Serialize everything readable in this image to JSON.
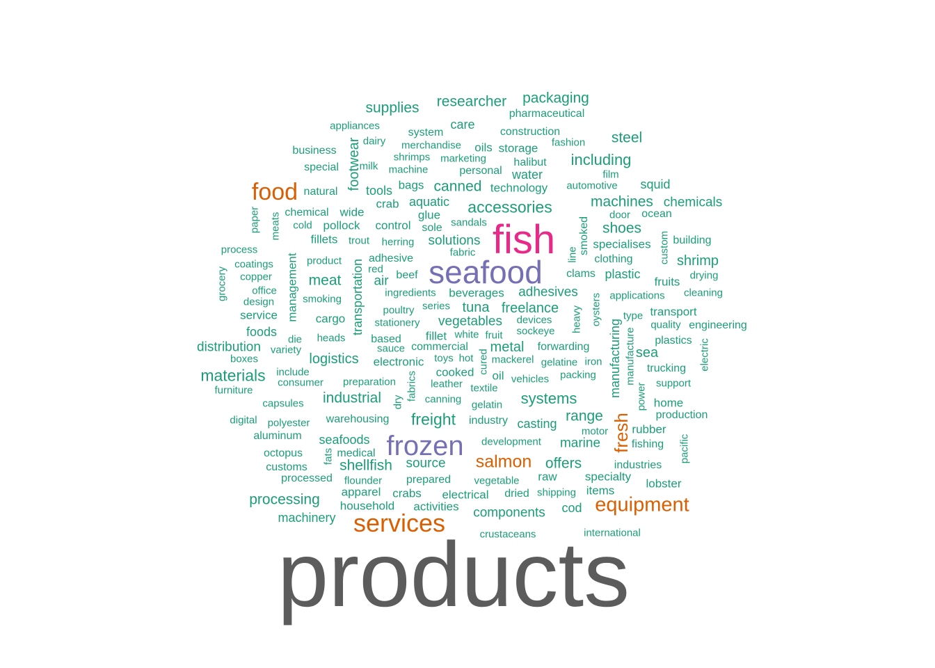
{
  "colors": {
    "teal": "#1b9e77",
    "orange": "#d95f02",
    "purple": "#7570b3",
    "magenta": "#e7298a",
    "gray": "#5c5c5c"
  },
  "words": [
    {
      "text": "products",
      "group": "gray"
    },
    {
      "text": "fish",
      "group": "magenta"
    },
    {
      "text": "seafood",
      "group": "purple"
    },
    {
      "text": "frozen",
      "group": "purple"
    },
    {
      "text": "services",
      "group": "orange"
    },
    {
      "text": "food",
      "group": "orange"
    },
    {
      "text": "equipment",
      "group": "orange"
    },
    {
      "text": "salmon",
      "group": "orange"
    },
    {
      "text": "fresh",
      "group": "orange"
    },
    {
      "text": "researcher",
      "group": "teal"
    },
    {
      "text": "packaging",
      "group": "teal"
    },
    {
      "text": "supplies",
      "group": "teal"
    },
    {
      "text": "pharmaceutical",
      "group": "teal"
    },
    {
      "text": "care",
      "group": "teal"
    },
    {
      "text": "appliances",
      "group": "teal"
    },
    {
      "text": "system",
      "group": "teal"
    },
    {
      "text": "construction",
      "group": "teal"
    },
    {
      "text": "dairy",
      "group": "teal"
    },
    {
      "text": "steel",
      "group": "teal"
    },
    {
      "text": "fashion",
      "group": "teal"
    },
    {
      "text": "merchandise",
      "group": "teal"
    },
    {
      "text": "oils",
      "group": "teal"
    },
    {
      "text": "storage",
      "group": "teal"
    },
    {
      "text": "business",
      "group": "teal"
    },
    {
      "text": "shrimps",
      "group": "teal"
    },
    {
      "text": "marketing",
      "group": "teal"
    },
    {
      "text": "halibut",
      "group": "teal"
    },
    {
      "text": "including",
      "group": "teal"
    },
    {
      "text": "special",
      "group": "teal"
    },
    {
      "text": "milk",
      "group": "teal"
    },
    {
      "text": "machine",
      "group": "teal"
    },
    {
      "text": "personal",
      "group": "teal"
    },
    {
      "text": "water",
      "group": "teal"
    },
    {
      "text": "film",
      "group": "teal"
    },
    {
      "text": "footwear",
      "group": "teal"
    },
    {
      "text": "natural",
      "group": "teal"
    },
    {
      "text": "tools",
      "group": "teal"
    },
    {
      "text": "bags",
      "group": "teal"
    },
    {
      "text": "canned",
      "group": "teal"
    },
    {
      "text": "technology",
      "group": "teal"
    },
    {
      "text": "automotive",
      "group": "teal"
    },
    {
      "text": "squid",
      "group": "teal"
    },
    {
      "text": "crab",
      "group": "teal"
    },
    {
      "text": "aquatic",
      "group": "teal"
    },
    {
      "text": "accessories",
      "group": "teal"
    },
    {
      "text": "machines",
      "group": "teal"
    },
    {
      "text": "chemicals",
      "group": "teal"
    },
    {
      "text": "paper",
      "group": "teal"
    },
    {
      "text": "meats",
      "group": "teal"
    },
    {
      "text": "chemical",
      "group": "teal"
    },
    {
      "text": "wide",
      "group": "teal"
    },
    {
      "text": "glue",
      "group": "teal"
    },
    {
      "text": "door",
      "group": "teal"
    },
    {
      "text": "ocean",
      "group": "teal"
    },
    {
      "text": "cold",
      "group": "teal"
    },
    {
      "text": "pollock",
      "group": "teal"
    },
    {
      "text": "control",
      "group": "teal"
    },
    {
      "text": "sole",
      "group": "teal"
    },
    {
      "text": "sandals",
      "group": "teal"
    },
    {
      "text": "smoked",
      "group": "teal"
    },
    {
      "text": "shoes",
      "group": "teal"
    },
    {
      "text": "custom",
      "group": "teal"
    },
    {
      "text": "fillets",
      "group": "teal"
    },
    {
      "text": "trout",
      "group": "teal"
    },
    {
      "text": "herring",
      "group": "teal"
    },
    {
      "text": "solutions",
      "group": "teal"
    },
    {
      "text": "specialises",
      "group": "teal"
    },
    {
      "text": "building",
      "group": "teal"
    },
    {
      "text": "process",
      "group": "teal"
    },
    {
      "text": "management",
      "group": "teal"
    },
    {
      "text": "fabric",
      "group": "teal"
    },
    {
      "text": "line",
      "group": "teal"
    },
    {
      "text": "clothing",
      "group": "teal"
    },
    {
      "text": "shrimp",
      "group": "teal"
    },
    {
      "text": "coatings",
      "group": "teal"
    },
    {
      "text": "product",
      "group": "teal"
    },
    {
      "text": "adhesive",
      "group": "teal"
    },
    {
      "text": "transportation",
      "group": "teal"
    },
    {
      "text": "red",
      "group": "teal"
    },
    {
      "text": "clams",
      "group": "teal"
    },
    {
      "text": "plastic",
      "group": "teal"
    },
    {
      "text": "drying",
      "group": "teal"
    },
    {
      "text": "grocery",
      "group": "teal"
    },
    {
      "text": "copper",
      "group": "teal"
    },
    {
      "text": "meat",
      "group": "teal"
    },
    {
      "text": "beef",
      "group": "teal"
    },
    {
      "text": "air",
      "group": "teal"
    },
    {
      "text": "fruits",
      "group": "teal"
    },
    {
      "text": "office",
      "group": "teal"
    },
    {
      "text": "ingredients",
      "group": "teal"
    },
    {
      "text": "beverages",
      "group": "teal"
    },
    {
      "text": "adhesives",
      "group": "teal"
    },
    {
      "text": "applications",
      "group": "teal"
    },
    {
      "text": "cleaning",
      "group": "teal"
    },
    {
      "text": "design",
      "group": "teal"
    },
    {
      "text": "smoking",
      "group": "teal"
    },
    {
      "text": "oysters",
      "group": "teal"
    },
    {
      "text": "series",
      "group": "teal"
    },
    {
      "text": "tuna",
      "group": "teal"
    },
    {
      "text": "freelance",
      "group": "teal"
    },
    {
      "text": "service",
      "group": "teal"
    },
    {
      "text": "poultry",
      "group": "teal"
    },
    {
      "text": "heavy",
      "group": "teal"
    },
    {
      "text": "type",
      "group": "teal"
    },
    {
      "text": "transport",
      "group": "teal"
    },
    {
      "text": "cargo",
      "group": "teal"
    },
    {
      "text": "stationery",
      "group": "teal"
    },
    {
      "text": "vegetables",
      "group": "teal"
    },
    {
      "text": "devices",
      "group": "teal"
    },
    {
      "text": "quality",
      "group": "teal"
    },
    {
      "text": "engineering",
      "group": "teal"
    },
    {
      "text": "foods",
      "group": "teal"
    },
    {
      "text": "sockeye",
      "group": "teal"
    },
    {
      "text": "die",
      "group": "teal"
    },
    {
      "text": "heads",
      "group": "teal"
    },
    {
      "text": "based",
      "group": "teal"
    },
    {
      "text": "fillet",
      "group": "teal"
    },
    {
      "text": "white",
      "group": "teal"
    },
    {
      "text": "fruit",
      "group": "teal"
    },
    {
      "text": "plastics",
      "group": "teal"
    },
    {
      "text": "manufacturing",
      "group": "teal"
    },
    {
      "text": "distribution",
      "group": "teal"
    },
    {
      "text": "variety",
      "group": "teal"
    },
    {
      "text": "sauce",
      "group": "teal"
    },
    {
      "text": "commercial",
      "group": "teal"
    },
    {
      "text": "metal",
      "group": "teal"
    },
    {
      "text": "forwarding",
      "group": "teal"
    },
    {
      "text": "manufacture",
      "group": "teal"
    },
    {
      "text": "sea",
      "group": "teal"
    },
    {
      "text": "electric",
      "group": "teal"
    },
    {
      "text": "boxes",
      "group": "teal"
    },
    {
      "text": "logistics",
      "group": "teal"
    },
    {
      "text": "electronic",
      "group": "teal"
    },
    {
      "text": "toys",
      "group": "teal"
    },
    {
      "text": "hot",
      "group": "teal"
    },
    {
      "text": "cured",
      "group": "teal"
    },
    {
      "text": "mackerel",
      "group": "teal"
    },
    {
      "text": "gelatine",
      "group": "teal"
    },
    {
      "text": "iron",
      "group": "teal"
    },
    {
      "text": "trucking",
      "group": "teal"
    },
    {
      "text": "materials",
      "group": "teal"
    },
    {
      "text": "include",
      "group": "teal"
    },
    {
      "text": "cooked",
      "group": "teal"
    },
    {
      "text": "oil",
      "group": "teal"
    },
    {
      "text": "packing",
      "group": "teal"
    },
    {
      "text": "consumer",
      "group": "teal"
    },
    {
      "text": "preparation",
      "group": "teal"
    },
    {
      "text": "fabrics",
      "group": "teal"
    },
    {
      "text": "leather",
      "group": "teal"
    },
    {
      "text": "vehicles",
      "group": "teal"
    },
    {
      "text": "support",
      "group": "teal"
    },
    {
      "text": "furniture",
      "group": "teal"
    },
    {
      "text": "textile",
      "group": "teal"
    },
    {
      "text": "power",
      "group": "teal"
    },
    {
      "text": "industrial",
      "group": "teal"
    },
    {
      "text": "dry",
      "group": "teal"
    },
    {
      "text": "canning",
      "group": "teal"
    },
    {
      "text": "systems",
      "group": "teal"
    },
    {
      "text": "home",
      "group": "teal"
    },
    {
      "text": "capsules",
      "group": "teal"
    },
    {
      "text": "gelatin",
      "group": "teal"
    },
    {
      "text": "production",
      "group": "teal"
    },
    {
      "text": "digital",
      "group": "teal"
    },
    {
      "text": "polyester",
      "group": "teal"
    },
    {
      "text": "warehousing",
      "group": "teal"
    },
    {
      "text": "freight",
      "group": "teal"
    },
    {
      "text": "industry",
      "group": "teal"
    },
    {
      "text": "casting",
      "group": "teal"
    },
    {
      "text": "range",
      "group": "teal"
    },
    {
      "text": "rubber",
      "group": "teal"
    },
    {
      "text": "aluminum",
      "group": "teal"
    },
    {
      "text": "seafoods",
      "group": "teal"
    },
    {
      "text": "development",
      "group": "teal"
    },
    {
      "text": "marine",
      "group": "teal"
    },
    {
      "text": "motor",
      "group": "teal"
    },
    {
      "text": "fishing",
      "group": "teal"
    },
    {
      "text": "pacific",
      "group": "teal"
    },
    {
      "text": "octopus",
      "group": "teal"
    },
    {
      "text": "fats",
      "group": "teal"
    },
    {
      "text": "medical",
      "group": "teal"
    },
    {
      "text": "source",
      "group": "teal"
    },
    {
      "text": "offers",
      "group": "teal"
    },
    {
      "text": "industries",
      "group": "teal"
    },
    {
      "text": "customs",
      "group": "teal"
    },
    {
      "text": "shellfish",
      "group": "teal"
    },
    {
      "text": "raw",
      "group": "teal"
    },
    {
      "text": "specialty",
      "group": "teal"
    },
    {
      "text": "processed",
      "group": "teal"
    },
    {
      "text": "flounder",
      "group": "teal"
    },
    {
      "text": "prepared",
      "group": "teal"
    },
    {
      "text": "vegetable",
      "group": "teal"
    },
    {
      "text": "lobster",
      "group": "teal"
    },
    {
      "text": "apparel",
      "group": "teal"
    },
    {
      "text": "crabs",
      "group": "teal"
    },
    {
      "text": "electrical",
      "group": "teal"
    },
    {
      "text": "dried",
      "group": "teal"
    },
    {
      "text": "shipping",
      "group": "teal"
    },
    {
      "text": "items",
      "group": "teal"
    },
    {
      "text": "processing",
      "group": "teal"
    },
    {
      "text": "household",
      "group": "teal"
    },
    {
      "text": "activities",
      "group": "teal"
    },
    {
      "text": "cod",
      "group": "teal"
    },
    {
      "text": "machinery",
      "group": "teal"
    },
    {
      "text": "components",
      "group": "teal"
    },
    {
      "text": "crustaceans",
      "group": "teal"
    },
    {
      "text": "international",
      "group": "teal"
    }
  ]
}
